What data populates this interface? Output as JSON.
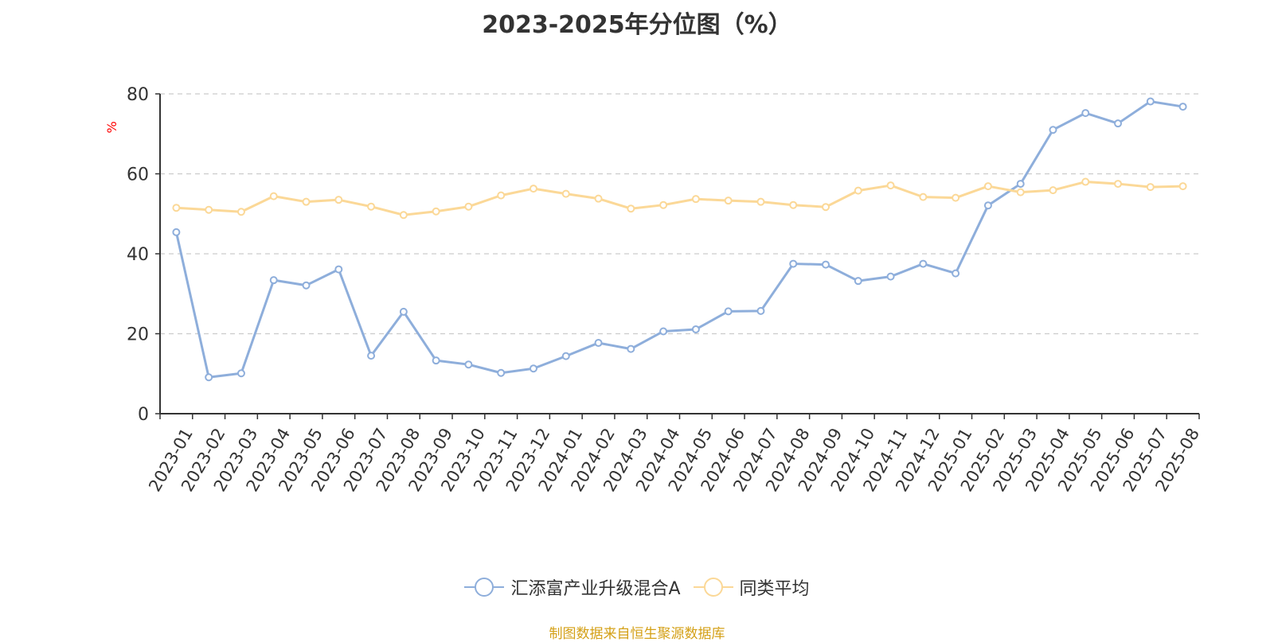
{
  "chart_data": {
    "type": "line",
    "title": "2023-2025年分位图（%）",
    "ylabel": "%",
    "xlabel": "",
    "ylim": [
      0,
      80
    ],
    "yticks": [
      0,
      20,
      40,
      60,
      80
    ],
    "grid": true,
    "legend_position": "bottom",
    "categories": [
      "2023-01",
      "2023-02",
      "2023-03",
      "2023-04",
      "2023-05",
      "2023-06",
      "2023-07",
      "2023-08",
      "2023-09",
      "2023-10",
      "2023-11",
      "2023-12",
      "2024-01",
      "2024-02",
      "2024-03",
      "2024-04",
      "2024-05",
      "2024-06",
      "2024-07",
      "2024-08",
      "2024-09",
      "2024-10",
      "2024-11",
      "2024-12",
      "2025-01",
      "2025-02",
      "2025-03",
      "2025-04",
      "2025-05",
      "2025-06",
      "2025-07",
      "2025-08"
    ],
    "series": [
      {
        "name": "汇添富产业升级混合A",
        "color": "#8eaedb",
        "values": [
          45.4,
          9.1,
          10.1,
          33.4,
          32.1,
          36.1,
          14.5,
          25.5,
          13.3,
          12.3,
          10.2,
          11.3,
          14.4,
          17.7,
          16.2,
          20.6,
          21.1,
          25.6,
          25.7,
          37.5,
          37.3,
          33.2,
          34.3,
          37.5,
          35.1,
          52.1,
          57.5,
          71.0,
          75.2,
          72.6,
          78.1,
          76.8
        ]
      },
      {
        "name": "同类平均",
        "color": "#fbd897",
        "values": [
          51.5,
          51.0,
          50.5,
          54.4,
          53.0,
          53.5,
          51.8,
          49.7,
          50.6,
          51.8,
          54.6,
          56.3,
          55.0,
          53.8,
          51.3,
          52.2,
          53.7,
          53.3,
          53.0,
          52.2,
          51.7,
          55.8,
          57.1,
          54.2,
          54.0,
          56.9,
          55.4,
          55.9,
          58.0,
          57.5,
          56.7,
          56.9
        ]
      }
    ]
  },
  "footer": {
    "source": "制图数据来自恒生聚源数据库"
  }
}
